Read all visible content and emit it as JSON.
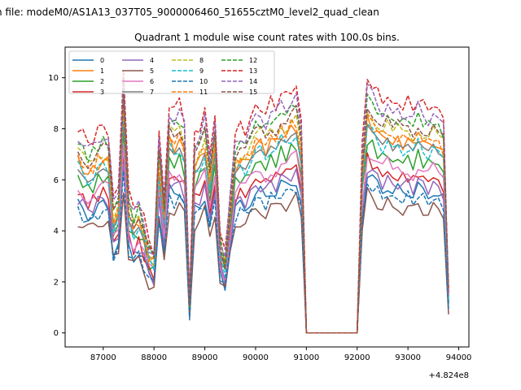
{
  "figure": {
    "suptitle": "n file: modeM0/AS1A13_037T05_9000006460_51655cztM0_level2_quad_clean",
    "title": "Quadrant 1 module wise count rates with 100.0s bins.",
    "x_offset_label": "+4.824e8"
  },
  "chart_data": {
    "type": "line",
    "title": "Quadrant 1 module wise count rates with 100.0s bins.",
    "xlabel": "",
    "ylabel": "",
    "x_offset": 482400000,
    "xlim": [
      86250,
      94200
    ],
    "ylim": [
      -0.55,
      11.2
    ],
    "xticks": [
      87000,
      88000,
      89000,
      90000,
      91000,
      92000,
      93000,
      94000
    ],
    "xtick_labels": [
      "87000",
      "88000",
      "89000",
      "90000",
      "91000",
      "92000",
      "93000",
      "94000"
    ],
    "yticks": [
      0,
      2,
      4,
      6,
      8,
      10
    ],
    "ytick_labels": [
      "0",
      "2",
      "4",
      "6",
      "8",
      "10"
    ],
    "grid": false,
    "legend_placement": "top-left",
    "legend_columns": 4,
    "x": [
      86500,
      86600,
      86700,
      86800,
      86900,
      87000,
      87100,
      87200,
      87300,
      87400,
      87500,
      87600,
      87700,
      87800,
      87900,
      88000,
      88100,
      88200,
      88300,
      88400,
      88500,
      88600,
      88700,
      88800,
      88900,
      89000,
      89100,
      89200,
      89300,
      89400,
      89500,
      89600,
      89700,
      89800,
      89900,
      90000,
      90100,
      90200,
      90300,
      90400,
      90500,
      90600,
      90700,
      90800,
      90900,
      91000,
      91100,
      91200,
      91300,
      91400,
      91500,
      91600,
      91700,
      91800,
      91900,
      92000,
      92100,
      92200,
      92300,
      92400,
      92500,
      92600,
      92700,
      92800,
      92900,
      93000,
      93100,
      93200,
      93300,
      93400,
      93500,
      93600,
      93700,
      93800
    ],
    "base": [
      5.0,
      4.8,
      4.6,
      4.7,
      4.9,
      5.0,
      4.9,
      3.2,
      3.5,
      6.5,
      3.4,
      3.0,
      3.2,
      2.8,
      2.2,
      2.0,
      4.8,
      3.2,
      5.6,
      5.4,
      5.6,
      5.2,
      0.8,
      4.8,
      5.0,
      5.4,
      4.2,
      5.4,
      2.4,
      1.9,
      3.4,
      4.8,
      5.0,
      4.9,
      5.2,
      5.4,
      5.5,
      5.3,
      5.6,
      5.5,
      5.8,
      5.7,
      5.9,
      6.0,
      5.0,
      0.0,
      0.0,
      0.0,
      0.0,
      0.0,
      0.0,
      0.0,
      0.0,
      0.0,
      0.0,
      0.0,
      4.5,
      6.2,
      6.0,
      5.8,
      5.6,
      5.8,
      5.4,
      5.6,
      5.5,
      5.6,
      5.4,
      5.7,
      5.5,
      5.4,
      5.6,
      5.3,
      5.2,
      1.1
    ],
    "series": [
      {
        "name": "0",
        "color": "#1f77b4",
        "dashed": false,
        "scale": 1.0
      },
      {
        "name": "1",
        "color": "#ff7f0e",
        "dashed": false,
        "scale": 1.35
      },
      {
        "name": "2",
        "color": "#2ca02c",
        "dashed": false,
        "scale": 1.22
      },
      {
        "name": "3",
        "color": "#d62728",
        "dashed": false,
        "scale": 1.1
      },
      {
        "name": "4",
        "color": "#9467bd",
        "dashed": false,
        "scale": 1.05
      },
      {
        "name": "5",
        "color": "#8c564b",
        "dashed": false,
        "scale": 0.88
      },
      {
        "name": "6",
        "color": "#e377c2",
        "dashed": false,
        "scale": 1.15
      },
      {
        "name": "7",
        "color": "#7f7f7f",
        "dashed": false,
        "scale": 1.28
      },
      {
        "name": "8",
        "color": "#bcbd22",
        "dashed": true,
        "scale": 1.42
      },
      {
        "name": "9",
        "color": "#17becf",
        "dashed": true,
        "scale": 1.3
      },
      {
        "name": "10",
        "color": "#1f77b4",
        "dashed": true,
        "scale": 0.95
      },
      {
        "name": "11",
        "color": "#ff7f0e",
        "dashed": true,
        "scale": 1.38
      },
      {
        "name": "12",
        "color": "#2ca02c",
        "dashed": true,
        "scale": 1.5
      },
      {
        "name": "13",
        "color": "#d62728",
        "dashed": true,
        "scale": 1.62
      },
      {
        "name": "14",
        "color": "#9467bd",
        "dashed": true,
        "scale": 1.55
      },
      {
        "name": "15",
        "color": "#8c564b",
        "dashed": true,
        "scale": 1.45
      }
    ]
  }
}
